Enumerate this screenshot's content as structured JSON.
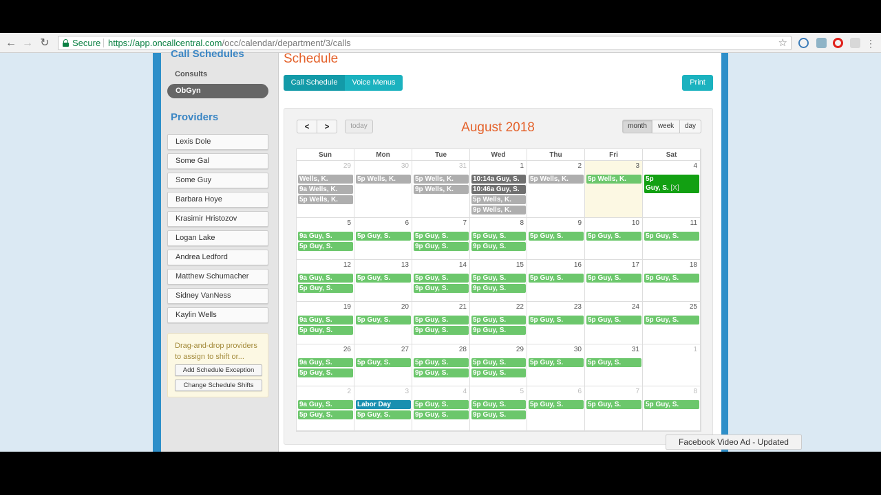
{
  "browser": {
    "secure_label": "Secure",
    "url_host": "https://app.oncallcentral.com",
    "url_path": "/occ/calendar/department/3/calls",
    "icons": [
      "back-icon",
      "forward-icon",
      "reload-icon",
      "lock-icon",
      "bookmark-star-icon",
      "extension-icon",
      "extension-icon",
      "opera-icon",
      "extension-icon",
      "menu-icon"
    ]
  },
  "sidebar": {
    "section_title": "Call Schedules",
    "departments": [
      "Consults",
      "ObGyn"
    ],
    "selected_department": "ObGyn",
    "providers_title": "Providers",
    "providers": [
      "Lexis Dole",
      "Some Gal",
      "Some Guy",
      "Barbara Hoye",
      "Krasimir Hristozov",
      "Logan Lake",
      "Andrea Ledford",
      "Matthew Schumacher",
      "Sidney VanNess",
      "Kaylin Wells"
    ],
    "hint_text": "Drag-and-drop providers to assign to shift or...",
    "add_exception_label": "Add Schedule Exception",
    "change_shifts_label": "Change Schedule Shifts"
  },
  "main": {
    "title": "Schedule",
    "tabs": [
      "Call Schedule",
      "Voice Menus"
    ],
    "active_tab": "Call Schedule",
    "print_label": "Print"
  },
  "calendar": {
    "prev_icon": "chevron-left-icon",
    "next_icon": "chevron-right-icon",
    "prev_label": "<",
    "next_label": ">",
    "today_label": "today",
    "month_title": "August 2018",
    "views": [
      "month",
      "week",
      "day"
    ],
    "active_view": "month",
    "day_headers": [
      "Sun",
      "Mon",
      "Tue",
      "Wed",
      "Thu",
      "Fri",
      "Sat"
    ],
    "weeks": [
      [
        {
          "day": "29",
          "other": true,
          "events": [
            {
              "text": "Wells, K.",
              "color": "gray"
            },
            {
              "text": "9a Wells, K.",
              "color": "gray"
            },
            {
              "text": "5p Wells, K.",
              "color": "gray"
            }
          ]
        },
        {
          "day": "30",
          "other": true,
          "events": [
            {
              "text": "5p Wells, K.",
              "color": "gray"
            }
          ]
        },
        {
          "day": "31",
          "other": true,
          "events": [
            {
              "text": "5p Wells, K.",
              "color": "gray"
            },
            {
              "text": "9p Wells, K.",
              "color": "gray"
            }
          ]
        },
        {
          "day": "1",
          "events": [
            {
              "text": "10:14a Guy, S.",
              "color": "dark"
            },
            {
              "text": "10:46a Guy, S.",
              "color": "dark"
            },
            {
              "text": "5p Wells, K.",
              "color": "gray"
            },
            {
              "text": "9p Wells, K.",
              "color": "gray"
            }
          ]
        },
        {
          "day": "2",
          "events": [
            {
              "text": "5p Wells, K.",
              "color": "gray"
            }
          ]
        },
        {
          "day": "3",
          "today": true,
          "events": [
            {
              "text": "5p Wells, K.",
              "color": "green"
            }
          ]
        },
        {
          "day": "4",
          "events": [
            {
              "text": "5p",
              "text2": "Guy, S.",
              "suffix": "[X]",
              "color": "bright"
            }
          ]
        }
      ],
      [
        {
          "day": "5",
          "events": [
            {
              "text": "9a Guy, S.",
              "color": "green"
            },
            {
              "text": "5p Guy, S.",
              "color": "green"
            }
          ]
        },
        {
          "day": "6",
          "events": [
            {
              "text": "5p Guy, S.",
              "color": "green"
            }
          ]
        },
        {
          "day": "7",
          "events": [
            {
              "text": "5p Guy, S.",
              "color": "green"
            },
            {
              "text": "9p Guy, S.",
              "color": "green"
            }
          ]
        },
        {
          "day": "8",
          "events": [
            {
              "text": "5p Guy, S.",
              "color": "green"
            },
            {
              "text": "9p Guy, S.",
              "color": "green"
            }
          ]
        },
        {
          "day": "9",
          "events": [
            {
              "text": "5p Guy, S.",
              "color": "green"
            }
          ]
        },
        {
          "day": "10",
          "events": [
            {
              "text": "5p Guy, S.",
              "color": "green"
            }
          ]
        },
        {
          "day": "11",
          "events": [
            {
              "text": "5p Guy, S.",
              "color": "green"
            }
          ]
        }
      ],
      [
        {
          "day": "12",
          "events": [
            {
              "text": "9a Guy, S.",
              "color": "green"
            },
            {
              "text": "5p Guy, S.",
              "color": "green"
            }
          ]
        },
        {
          "day": "13",
          "events": [
            {
              "text": "5p Guy, S.",
              "color": "green"
            }
          ]
        },
        {
          "day": "14",
          "events": [
            {
              "text": "5p Guy, S.",
              "color": "green"
            },
            {
              "text": "9p Guy, S.",
              "color": "green"
            }
          ]
        },
        {
          "day": "15",
          "events": [
            {
              "text": "5p Guy, S.",
              "color": "green"
            },
            {
              "text": "9p Guy, S.",
              "color": "green"
            }
          ]
        },
        {
          "day": "16",
          "events": [
            {
              "text": "5p Guy, S.",
              "color": "green"
            }
          ]
        },
        {
          "day": "17",
          "events": [
            {
              "text": "5p Guy, S.",
              "color": "green"
            }
          ]
        },
        {
          "day": "18",
          "events": [
            {
              "text": "5p Guy, S.",
              "color": "green"
            }
          ]
        }
      ],
      [
        {
          "day": "19",
          "events": [
            {
              "text": "9a Guy, S.",
              "color": "green"
            },
            {
              "text": "5p Guy, S.",
              "color": "green"
            }
          ]
        },
        {
          "day": "20",
          "events": [
            {
              "text": "5p Guy, S.",
              "color": "green"
            }
          ]
        },
        {
          "day": "21",
          "events": [
            {
              "text": "5p Guy, S.",
              "color": "green"
            },
            {
              "text": "9p Guy, S.",
              "color": "green"
            }
          ]
        },
        {
          "day": "22",
          "events": [
            {
              "text": "5p Guy, S.",
              "color": "green"
            },
            {
              "text": "9p Guy, S.",
              "color": "green"
            }
          ]
        },
        {
          "day": "23",
          "events": [
            {
              "text": "5p Guy, S.",
              "color": "green"
            }
          ]
        },
        {
          "day": "24",
          "events": [
            {
              "text": "5p Guy, S.",
              "color": "green"
            }
          ]
        },
        {
          "day": "25",
          "events": [
            {
              "text": "5p Guy, S.",
              "color": "green"
            }
          ]
        }
      ],
      [
        {
          "day": "26",
          "events": [
            {
              "text": "9a Guy, S.",
              "color": "green"
            },
            {
              "text": "5p Guy, S.",
              "color": "green"
            }
          ]
        },
        {
          "day": "27",
          "events": [
            {
              "text": "5p Guy, S.",
              "color": "green"
            }
          ]
        },
        {
          "day": "28",
          "events": [
            {
              "text": "5p Guy, S.",
              "color": "green"
            },
            {
              "text": "9p Guy, S.",
              "color": "green"
            }
          ]
        },
        {
          "day": "29",
          "events": [
            {
              "text": "5p Guy, S.",
              "color": "green"
            },
            {
              "text": "9p Guy, S.",
              "color": "green"
            }
          ]
        },
        {
          "day": "30",
          "events": [
            {
              "text": "5p Guy, S.",
              "color": "green"
            }
          ]
        },
        {
          "day": "31",
          "events": [
            {
              "text": "5p Guy, S.",
              "color": "green"
            }
          ]
        },
        {
          "day": "1",
          "other": true,
          "events": []
        }
      ],
      [
        {
          "day": "2",
          "other": true,
          "events": [
            {
              "text": "9a Guy, S.",
              "color": "green"
            },
            {
              "text": "5p Guy, S.",
              "color": "green"
            }
          ]
        },
        {
          "day": "3",
          "other": true,
          "events": [
            {
              "text": "Labor Day",
              "color": "blue"
            },
            {
              "text": "5p Guy, S.",
              "color": "green"
            }
          ]
        },
        {
          "day": "4",
          "other": true,
          "events": [
            {
              "text": "5p Guy, S.",
              "color": "green"
            },
            {
              "text": "9p Guy, S.",
              "color": "green"
            }
          ]
        },
        {
          "day": "5",
          "other": true,
          "events": [
            {
              "text": "5p Guy, S.",
              "color": "green"
            },
            {
              "text": "9p Guy, S.",
              "color": "green"
            }
          ]
        },
        {
          "day": "6",
          "other": true,
          "events": [
            {
              "text": "5p Guy, S.",
              "color": "green"
            }
          ]
        },
        {
          "day": "7",
          "other": true,
          "events": [
            {
              "text": "5p Guy, S.",
              "color": "green"
            }
          ]
        },
        {
          "day": "8",
          "other": true,
          "events": [
            {
              "text": "5p Guy, S.",
              "color": "green"
            }
          ]
        }
      ]
    ]
  },
  "overlay": {
    "toast_text": "Facebook Video Ad - Updated"
  },
  "colors": {
    "accent": "#1bb2bf",
    "title_orange": "#e4612a",
    "event_green": "#6cc76c",
    "event_gray": "#aeaeae",
    "sidebar_blue": "#3b86c4"
  }
}
